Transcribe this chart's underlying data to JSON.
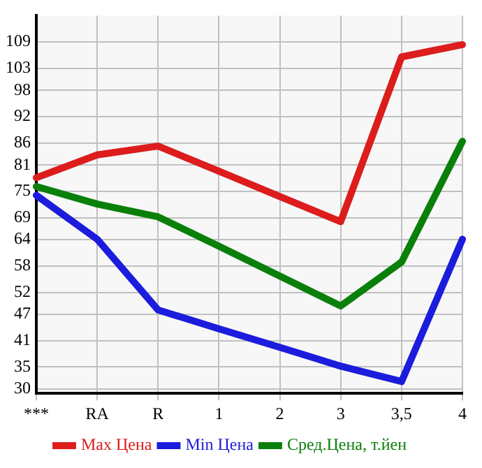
{
  "chart_data": {
    "type": "line",
    "categories": [
      "***",
      "RA",
      "R",
      "1",
      "2",
      "3",
      "3,5",
      "4"
    ],
    "series": [
      {
        "name": "Max Цена",
        "color": "#dd1c1c",
        "values": [
          78.1,
          83.3,
          85.3,
          79.6,
          73.8,
          68.1,
          105.6,
          108.4
        ]
      },
      {
        "name": "Min Цена",
        "color": "#1c1cdd",
        "values": [
          74.1,
          64.1,
          48.0,
          43.7,
          39.5,
          35.2,
          31.7,
          64.1
        ]
      },
      {
        "name": "Сред.Цена, т.йен",
        "color": "#0a800a",
        "values": [
          76.1,
          72.1,
          69.2,
          62.5,
          55.7,
          48.9,
          58.9,
          86.4
        ]
      }
    ],
    "ylim": [
      29,
      115
    ],
    "yticks": [
      30,
      35,
      41,
      47,
      52,
      58,
      64,
      69,
      75,
      81,
      86,
      92,
      98,
      103,
      109
    ],
    "grid": true,
    "legend": "bottom",
    "marker": "none",
    "line_style": "solid"
  }
}
